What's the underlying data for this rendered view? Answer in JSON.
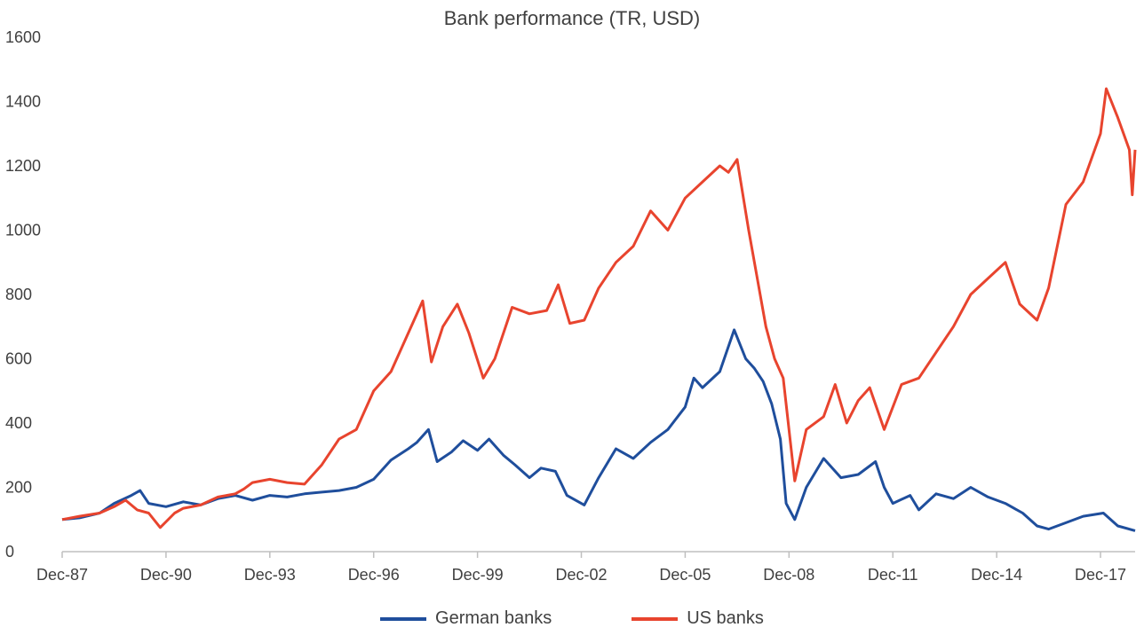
{
  "chart_data": {
    "type": "line",
    "title": "Bank performance (TR, USD)",
    "xlabel": "",
    "ylabel": "",
    "ylim": [
      0,
      1600
    ],
    "yticks": [
      0,
      200,
      400,
      600,
      800,
      1000,
      1200,
      1400,
      1600
    ],
    "xticks": [
      "Dec-87",
      "Dec-90",
      "Dec-93",
      "Dec-96",
      "Dec-99",
      "Dec-02",
      "Dec-05",
      "Dec-08",
      "Dec-11",
      "Dec-14",
      "Dec-17"
    ],
    "xlim": [
      "1987-12",
      "2018-12"
    ],
    "grid": false,
    "legend_position": "bottom",
    "series": [
      {
        "name": "German banks",
        "color": "#1f4e9c",
        "points": [
          [
            "1987-12",
            100
          ],
          [
            "1988-06",
            105
          ],
          [
            "1989-01",
            120
          ],
          [
            "1989-06",
            150
          ],
          [
            "1989-12",
            175
          ],
          [
            "1990-03",
            190
          ],
          [
            "1990-06",
            150
          ],
          [
            "1990-12",
            140
          ],
          [
            "1991-06",
            155
          ],
          [
            "1991-12",
            145
          ],
          [
            "1992-06",
            165
          ],
          [
            "1992-12",
            175
          ],
          [
            "1993-06",
            160
          ],
          [
            "1993-12",
            175
          ],
          [
            "1994-06",
            170
          ],
          [
            "1994-12",
            180
          ],
          [
            "1995-06",
            185
          ],
          [
            "1995-12",
            190
          ],
          [
            "1996-06",
            200
          ],
          [
            "1996-12",
            225
          ],
          [
            "1997-06",
            285
          ],
          [
            "1997-12",
            320
          ],
          [
            "1998-03",
            340
          ],
          [
            "1998-07",
            380
          ],
          [
            "1998-10",
            280
          ],
          [
            "1999-03",
            310
          ],
          [
            "1999-07",
            345
          ],
          [
            "1999-12",
            315
          ],
          [
            "2000-04",
            350
          ],
          [
            "2000-09",
            300
          ],
          [
            "2001-01",
            270
          ],
          [
            "2001-06",
            230
          ],
          [
            "2001-10",
            260
          ],
          [
            "2002-03",
            250
          ],
          [
            "2002-07",
            175
          ],
          [
            "2003-01",
            145
          ],
          [
            "2003-06",
            230
          ],
          [
            "2003-12",
            320
          ],
          [
            "2004-06",
            290
          ],
          [
            "2004-12",
            340
          ],
          [
            "2005-06",
            380
          ],
          [
            "2005-12",
            450
          ],
          [
            "2006-03",
            540
          ],
          [
            "2006-06",
            510
          ],
          [
            "2006-12",
            560
          ],
          [
            "2007-05",
            690
          ],
          [
            "2007-09",
            600
          ],
          [
            "2007-12",
            570
          ],
          [
            "2008-03",
            530
          ],
          [
            "2008-06",
            460
          ],
          [
            "2008-09",
            350
          ],
          [
            "2008-11",
            150
          ],
          [
            "2009-02",
            100
          ],
          [
            "2009-06",
            200
          ],
          [
            "2009-12",
            290
          ],
          [
            "2010-06",
            230
          ],
          [
            "2010-12",
            240
          ],
          [
            "2011-06",
            280
          ],
          [
            "2011-09",
            200
          ],
          [
            "2011-12",
            150
          ],
          [
            "2012-06",
            175
          ],
          [
            "2012-09",
            130
          ],
          [
            "2013-03",
            180
          ],
          [
            "2013-09",
            165
          ],
          [
            "2014-03",
            200
          ],
          [
            "2014-09",
            170
          ],
          [
            "2015-03",
            150
          ],
          [
            "2015-09",
            120
          ],
          [
            "2016-02",
            80
          ],
          [
            "2016-06",
            70
          ],
          [
            "2016-12",
            90
          ],
          [
            "2017-06",
            110
          ],
          [
            "2018-01",
            120
          ],
          [
            "2018-06",
            80
          ],
          [
            "2018-12",
            65
          ]
        ]
      },
      {
        "name": "US banks",
        "color": "#e8442e",
        "points": [
          [
            "1987-12",
            100
          ],
          [
            "1988-06",
            110
          ],
          [
            "1989-01",
            120
          ],
          [
            "1989-06",
            140
          ],
          [
            "1989-10",
            160
          ],
          [
            "1990-02",
            130
          ],
          [
            "1990-06",
            120
          ],
          [
            "1990-10",
            75
          ],
          [
            "1991-03",
            120
          ],
          [
            "1991-06",
            135
          ],
          [
            "1991-12",
            145
          ],
          [
            "1992-06",
            170
          ],
          [
            "1992-12",
            180
          ],
          [
            "1993-03",
            195
          ],
          [
            "1993-06",
            215
          ],
          [
            "1993-12",
            225
          ],
          [
            "1994-06",
            215
          ],
          [
            "1994-12",
            210
          ],
          [
            "1995-06",
            270
          ],
          [
            "1995-12",
            350
          ],
          [
            "1996-06",
            380
          ],
          [
            "1996-12",
            500
          ],
          [
            "1997-06",
            560
          ],
          [
            "1997-12",
            680
          ],
          [
            "1998-05",
            780
          ],
          [
            "1998-08",
            590
          ],
          [
            "1998-12",
            700
          ],
          [
            "1999-05",
            770
          ],
          [
            "1999-09",
            680
          ],
          [
            "2000-02",
            540
          ],
          [
            "2000-06",
            600
          ],
          [
            "2000-12",
            760
          ],
          [
            "2001-06",
            740
          ],
          [
            "2001-12",
            750
          ],
          [
            "2002-04",
            830
          ],
          [
            "2002-08",
            710
          ],
          [
            "2003-01",
            720
          ],
          [
            "2003-06",
            820
          ],
          [
            "2003-12",
            900
          ],
          [
            "2004-06",
            950
          ],
          [
            "2004-12",
            1060
          ],
          [
            "2005-06",
            1000
          ],
          [
            "2005-12",
            1100
          ],
          [
            "2006-06",
            1150
          ],
          [
            "2006-12",
            1200
          ],
          [
            "2007-03",
            1180
          ],
          [
            "2007-06",
            1220
          ],
          [
            "2007-10",
            1000
          ],
          [
            "2008-01",
            850
          ],
          [
            "2008-04",
            700
          ],
          [
            "2008-07",
            600
          ],
          [
            "2008-10",
            540
          ],
          [
            "2009-02",
            220
          ],
          [
            "2009-06",
            380
          ],
          [
            "2009-12",
            420
          ],
          [
            "2010-04",
            520
          ],
          [
            "2010-08",
            400
          ],
          [
            "2010-12",
            470
          ],
          [
            "2011-04",
            510
          ],
          [
            "2011-09",
            380
          ],
          [
            "2012-03",
            520
          ],
          [
            "2012-09",
            540
          ],
          [
            "2013-03",
            620
          ],
          [
            "2013-09",
            700
          ],
          [
            "2014-03",
            800
          ],
          [
            "2014-09",
            850
          ],
          [
            "2015-03",
            900
          ],
          [
            "2015-08",
            770
          ],
          [
            "2016-02",
            720
          ],
          [
            "2016-06",
            820
          ],
          [
            "2016-12",
            1080
          ],
          [
            "2017-06",
            1150
          ],
          [
            "2017-12",
            1300
          ],
          [
            "2018-02",
            1440
          ],
          [
            "2018-06",
            1350
          ],
          [
            "2018-10",
            1250
          ],
          [
            "2018-11",
            1110
          ],
          [
            "2018-12",
            1250
          ]
        ]
      }
    ]
  }
}
